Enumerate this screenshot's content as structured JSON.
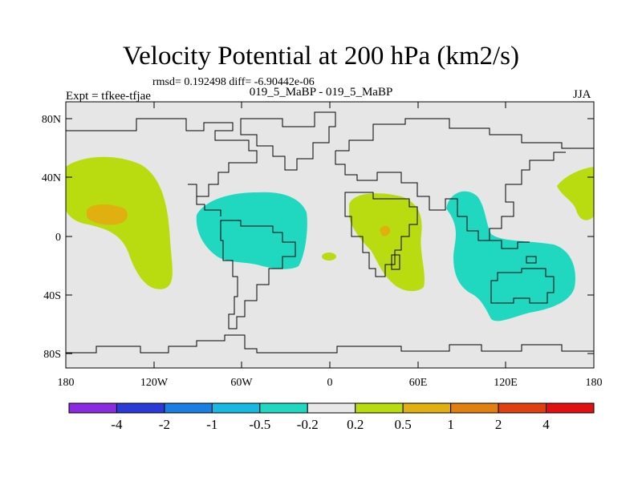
{
  "title": "Velocity Potential at 200 hPa (km2/s)",
  "stats": "rmsd= 0.192498 diff= -6.90442e-06",
  "experiment": "Expt = tfkee-tfjae",
  "subtitle": "019_5_MaBP - 019_5_MaBP",
  "season": "JJA",
  "axes": {
    "lat_ticks": [
      "80N",
      "40N",
      "0",
      "40S",
      "80S"
    ],
    "lon_ticks": [
      "180",
      "120W",
      "60W",
      "0",
      "60E",
      "120E",
      "180"
    ]
  },
  "colorbar": {
    "labels": [
      "-4",
      "-2",
      "-1",
      "-0.5",
      "-0.2",
      "0.2",
      "0.5",
      "1",
      "2",
      "4"
    ],
    "colors": [
      "#8a2be2",
      "#2a3ad6",
      "#1a7fe0",
      "#18b8e0",
      "#20d8c0",
      "#e8e8e8",
      "#b8dc10",
      "#e0b010",
      "#e08010",
      "#e04010",
      "#e01010"
    ]
  },
  "map_colors": {
    "background": "#e6e6e6",
    "positive_weak": "#b8dc10",
    "positive_mid": "#e0b010",
    "negative_weak": "#20d8c0"
  }
}
